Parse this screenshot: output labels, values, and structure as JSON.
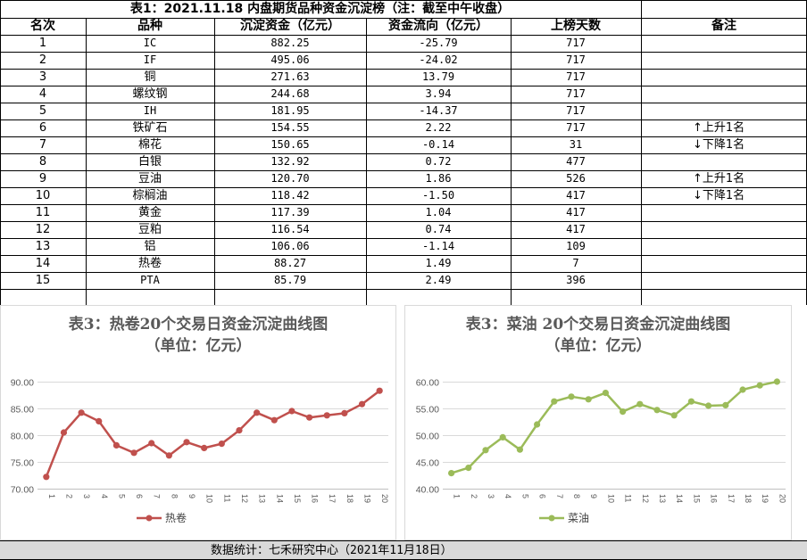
{
  "table": {
    "title": "表1：2021.11.18 内盘期货品种资金沉淀榜（注：截至中午收盘）",
    "headers": [
      "名次",
      "品种",
      "沉淀资金（亿元）",
      "资金流向（亿元）",
      "上榜天数",
      "备注"
    ],
    "rows": [
      {
        "rank": "1",
        "name": "IC",
        "fund": "882.25",
        "flow": "-25.79",
        "days": "717",
        "note": ""
      },
      {
        "rank": "2",
        "name": "IF",
        "fund": "495.06",
        "flow": "-24.02",
        "days": "717",
        "note": ""
      },
      {
        "rank": "3",
        "name": "铜",
        "fund": "271.63",
        "flow": "13.79",
        "days": "717",
        "note": ""
      },
      {
        "rank": "4",
        "name": "螺纹钢",
        "fund": "244.68",
        "flow": "3.94",
        "days": "717",
        "note": ""
      },
      {
        "rank": "5",
        "name": "IH",
        "fund": "181.95",
        "flow": "-14.37",
        "days": "717",
        "note": ""
      },
      {
        "rank": "6",
        "name": "铁矿石",
        "fund": "154.55",
        "flow": "2.22",
        "days": "717",
        "note": "上升1名",
        "arrow": "↑"
      },
      {
        "rank": "7",
        "name": "棉花",
        "fund": "150.65",
        "flow": "-0.14",
        "days": "31",
        "note": "下降1名",
        "arrow": "↓"
      },
      {
        "rank": "8",
        "name": "白银",
        "fund": "132.92",
        "flow": "0.72",
        "days": "477",
        "note": ""
      },
      {
        "rank": "9",
        "name": "豆油",
        "fund": "120.70",
        "flow": "1.86",
        "days": "526",
        "note": "上升1名",
        "arrow": "↑"
      },
      {
        "rank": "10",
        "name": "棕榈油",
        "fund": "118.42",
        "flow": "-1.50",
        "days": "417",
        "note": "下降1名",
        "arrow": "↓"
      },
      {
        "rank": "11",
        "name": "黄金",
        "fund": "117.39",
        "flow": "1.04",
        "days": "417",
        "note": ""
      },
      {
        "rank": "12",
        "name": "豆粕",
        "fund": "116.54",
        "flow": "0.74",
        "days": "417",
        "note": ""
      },
      {
        "rank": "13",
        "name": "铝",
        "fund": "106.06",
        "flow": "-1.14",
        "days": "109",
        "note": ""
      },
      {
        "rank": "14",
        "name": "热卷",
        "fund": "88.27",
        "flow": "1.49",
        "days": "7",
        "note": ""
      },
      {
        "rank": "15",
        "name": "PTA",
        "fund": "85.79",
        "flow": "2.49",
        "days": "396",
        "note": ""
      }
    ]
  },
  "chart_data": [
    {
      "type": "line",
      "title": "表3：热卷20个交易日资金沉淀曲线图",
      "subtitle": "（单位：亿元）",
      "x": [
        "1",
        "2",
        "3",
        "4",
        "5",
        "6",
        "7",
        "8",
        "9",
        "10",
        "11",
        "12",
        "13",
        "14",
        "15",
        "16",
        "17",
        "18",
        "19",
        "20"
      ],
      "series": [
        {
          "name": "热卷",
          "values": [
            72.2,
            80.5,
            84.2,
            82.6,
            78.1,
            76.7,
            78.5,
            76.2,
            78.7,
            77.6,
            78.4,
            80.9,
            84.2,
            82.8,
            84.5,
            83.3,
            83.7,
            84.1,
            85.8,
            88.3
          ],
          "color": "#c0504d"
        }
      ],
      "yticks": [
        "70.00",
        "75.00",
        "80.00",
        "85.00",
        "90.00"
      ],
      "ylim": [
        70,
        90
      ],
      "grid": true,
      "legend": "bottom"
    },
    {
      "type": "line",
      "title": "表3：菜油 20个交易日资金沉淀曲线图",
      "subtitle": "（单位：亿元）",
      "x": [
        "1",
        "2",
        "3",
        "4",
        "5",
        "6",
        "7",
        "8",
        "9",
        "10",
        "11",
        "12",
        "13",
        "14",
        "15",
        "16",
        "17",
        "18",
        "19",
        "20"
      ],
      "series": [
        {
          "name": "菜油",
          "values": [
            42.9,
            43.9,
            47.2,
            49.6,
            47.3,
            52.0,
            56.3,
            57.2,
            56.7,
            57.9,
            54.4,
            55.8,
            54.7,
            53.7,
            56.3,
            55.5,
            55.6,
            58.5,
            59.3,
            60.0
          ],
          "color": "#9bbb59"
        }
      ],
      "yticks": [
        "40.00",
        "45.00",
        "50.00",
        "55.00",
        "60.00"
      ],
      "ylim": [
        40,
        60
      ],
      "grid": true,
      "legend": "bottom"
    }
  ],
  "footer": {
    "text": "数据统计：七禾研究中心（2021年11月18日）"
  }
}
